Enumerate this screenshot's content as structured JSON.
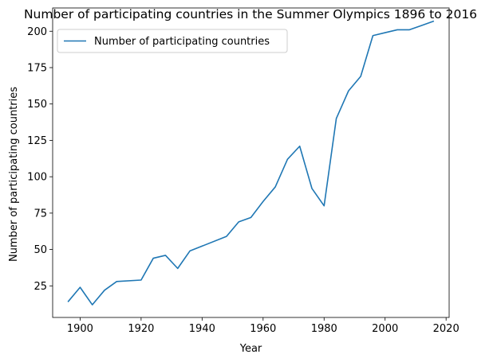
{
  "chart_data": {
    "type": "line",
    "title": "Number of participating countries in the Summer Olympics 1896 to 2016",
    "xlabel": "Year",
    "ylabel": "Number of participating countries",
    "xlim": [
      1891,
      2021
    ],
    "ylim": [
      3.3,
      216
    ],
    "xticks": [
      1900,
      1920,
      1940,
      1960,
      1980,
      2000,
      2020
    ],
    "yticks": [
      25,
      50,
      75,
      100,
      125,
      150,
      175,
      200
    ],
    "grid": false,
    "legend_position": "upper-left",
    "line_color": "#1f77b4",
    "series": [
      {
        "name": "Number of participating countries",
        "x": [
          1896,
          1900,
          1904,
          1908,
          1912,
          1920,
          1924,
          1928,
          1932,
          1936,
          1948,
          1952,
          1956,
          1960,
          1964,
          1968,
          1972,
          1976,
          1980,
          1984,
          1988,
          1992,
          1996,
          2000,
          2004,
          2008,
          2012,
          2016
        ],
        "y": [
          14,
          24,
          12,
          22,
          28,
          29,
          44,
          46,
          37,
          49,
          59,
          69,
          72,
          83,
          93,
          112,
          121,
          92,
          80,
          140,
          159,
          169,
          197,
          199,
          201,
          201,
          204,
          207
        ]
      }
    ]
  }
}
